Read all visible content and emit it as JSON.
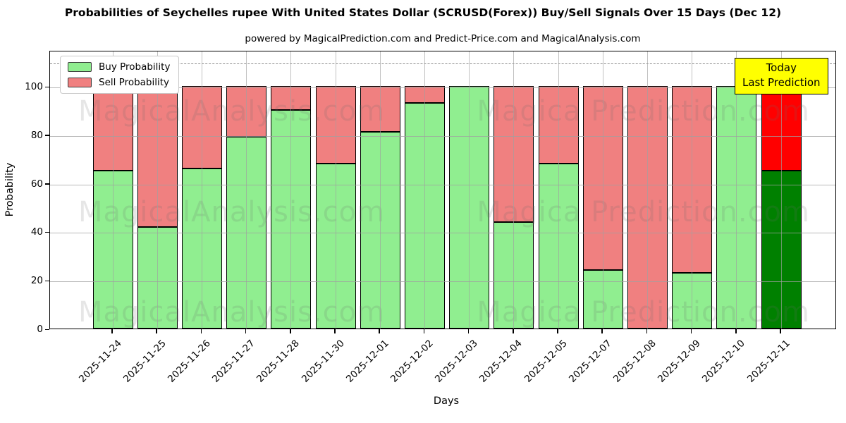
{
  "title": "Probabilities of Seychelles rupee With United States Dollar (SCRUSD(Forex)) Buy/Sell Signals Over 15 Days (Dec 12)",
  "subtitle": "powered by MagicalPrediction.com and Predict-Price.com and MagicalAnalysis.com",
  "legend": {
    "items": [
      {
        "label": "Buy Probability",
        "color": "#90ee90"
      },
      {
        "label": "Sell Probability",
        "color": "#f08080"
      }
    ]
  },
  "annotation": {
    "line1": "Today",
    "line2": "Last Prediction",
    "bg_color": "#ffff00"
  },
  "watermarks": {
    "left": "MagicalAnalysis.com",
    "right": "Magica Prediction.com"
  },
  "chart_data": {
    "type": "bar",
    "stacked": true,
    "title": "Probabilities of Seychelles rupee With United States Dollar (SCRUSD(Forex)) Buy/Sell Signals Over 15 Days (Dec 12)",
    "xlabel": "Days",
    "ylabel": "Probability",
    "categories": [
      "2025-11-24",
      "2025-11-25",
      "2025-11-26",
      "2025-11-27",
      "2025-11-28",
      "2025-11-30",
      "2025-12-01",
      "2025-12-02",
      "2025-12-03",
      "2025-12-04",
      "2025-12-05",
      "2025-12-07",
      "2025-12-08",
      "2025-12-09",
      "2025-12-10",
      "2025-12-11"
    ],
    "series": [
      {
        "name": "Buy Probability",
        "color": "#90ee90",
        "values": [
          65,
          42,
          66,
          79,
          90,
          68,
          81,
          93,
          100,
          44,
          68,
          24,
          0,
          23,
          100,
          65
        ]
      },
      {
        "name": "Sell Probability",
        "color": "#f08080",
        "values": [
          35,
          58,
          34,
          21,
          10,
          32,
          19,
          7,
          0,
          56,
          32,
          76,
          100,
          77,
          0,
          35
        ]
      }
    ],
    "today_bar": {
      "index": 15,
      "category": "2025-12-11",
      "buy_color": "#008000",
      "sell_color": "#ff0000"
    },
    "yticks": [
      0,
      20,
      40,
      60,
      80,
      100
    ],
    "ylim": [
      0,
      115
    ],
    "dashed_line_y": 110,
    "grid": true,
    "legend_position": "upper-left"
  }
}
